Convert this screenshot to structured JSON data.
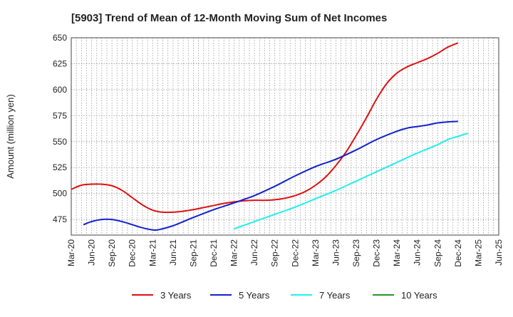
{
  "chart_data": {
    "type": "line",
    "title": "[5903]  Trend of Mean of 12-Month Moving Sum of Net Incomes",
    "ylabel": "Amount (million yen)",
    "xlabel": "",
    "ylim": [
      460,
      650
    ],
    "yticks": [
      475,
      500,
      525,
      550,
      575,
      600,
      625,
      650
    ],
    "x_ticks": [
      "Mar-20",
      "Jun-20",
      "Sep-20",
      "Dec-20",
      "Mar-21",
      "Jun-21",
      "Sep-21",
      "Dec-21",
      "Mar-22",
      "Jun-22",
      "Sep-22",
      "Dec-22",
      "Mar-23",
      "Jun-23",
      "Sep-23",
      "Dec-23",
      "Mar-24",
      "Jun-24",
      "Sep-24",
      "Dec-24",
      "Mar-25",
      "Jun-25"
    ],
    "grid": true,
    "legend_position": "bottom",
    "series": [
      {
        "name": "3 Years",
        "color": "#dd1111",
        "points": [
          [
            0,
            504
          ],
          [
            0.5,
            508
          ],
          [
            1,
            509
          ],
          [
            1.5,
            509
          ],
          [
            2,
            507.5
          ],
          [
            2.5,
            503
          ],
          [
            3,
            496
          ],
          [
            3.5,
            489
          ],
          [
            4,
            484
          ],
          [
            4.5,
            482
          ],
          [
            5,
            482
          ],
          [
            5.5,
            483
          ],
          [
            6,
            484.5
          ],
          [
            6.5,
            486.5
          ],
          [
            7,
            488.5
          ],
          [
            7.5,
            490.5
          ],
          [
            8,
            492
          ],
          [
            8.5,
            493
          ],
          [
            9,
            493.5
          ],
          [
            9.5,
            493.5
          ],
          [
            10,
            494
          ],
          [
            10.5,
            495.5
          ],
          [
            11,
            498
          ],
          [
            11.5,
            502
          ],
          [
            12,
            508
          ],
          [
            12.5,
            516
          ],
          [
            13,
            527
          ],
          [
            13.5,
            540
          ],
          [
            14,
            556
          ],
          [
            14.5,
            573
          ],
          [
            15,
            591
          ],
          [
            15.5,
            606
          ],
          [
            16,
            616
          ],
          [
            16.5,
            622
          ],
          [
            17,
            626
          ],
          [
            17.5,
            630
          ],
          [
            18,
            635
          ],
          [
            18.5,
            641
          ],
          [
            19,
            645
          ]
        ]
      },
      {
        "name": "5 Years",
        "color": "#1122cc",
        "points": [
          [
            0.6,
            470
          ],
          [
            1,
            473
          ],
          [
            1.5,
            475
          ],
          [
            2,
            475
          ],
          [
            2.5,
            473
          ],
          [
            3,
            470
          ],
          [
            3.5,
            467
          ],
          [
            4,
            465
          ],
          [
            4.3,
            465.2
          ],
          [
            5,
            469
          ],
          [
            6,
            477
          ],
          [
            7,
            484.5
          ],
          [
            8,
            491
          ],
          [
            8.5,
            494.5
          ],
          [
            9,
            498
          ],
          [
            10,
            507
          ],
          [
            11,
            517
          ],
          [
            12,
            526
          ],
          [
            13,
            533
          ],
          [
            14,
            542
          ],
          [
            15,
            552
          ],
          [
            16,
            560
          ],
          [
            16.5,
            563
          ],
          [
            17,
            564.5
          ],
          [
            17.5,
            566
          ],
          [
            18,
            568
          ],
          [
            18.5,
            569
          ],
          [
            19,
            569.5
          ]
        ]
      },
      {
        "name": "7 Years",
        "color": "#22eeee",
        "points": [
          [
            8,
            466
          ],
          [
            9,
            473
          ],
          [
            10,
            480
          ],
          [
            11,
            487
          ],
          [
            12,
            495
          ],
          [
            13,
            503
          ],
          [
            14,
            512
          ],
          [
            15,
            521
          ],
          [
            16,
            530
          ],
          [
            17,
            539
          ],
          [
            18,
            547
          ],
          [
            18.5,
            552
          ],
          [
            19,
            555
          ],
          [
            19.3,
            557
          ],
          [
            19.5,
            558
          ]
        ]
      },
      {
        "name": "10 Years",
        "color": "#229922",
        "points": []
      }
    ]
  }
}
